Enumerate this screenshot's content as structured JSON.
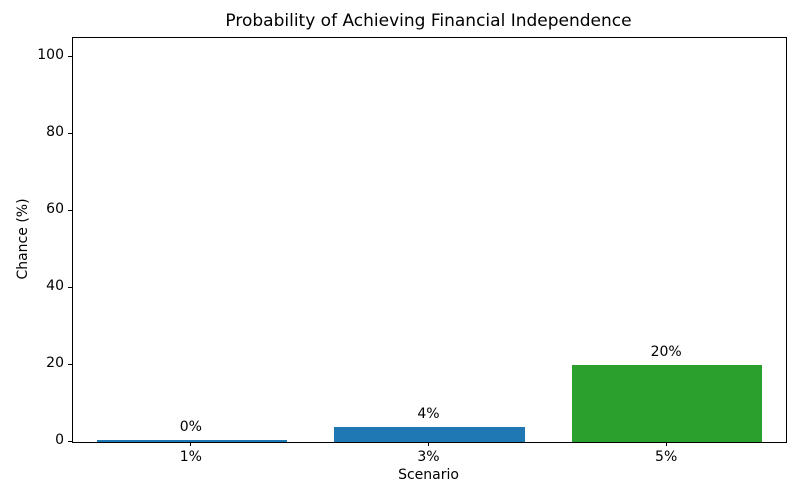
{
  "chart_data": {
    "type": "bar",
    "title": "Probability of Achieving Financial Independence",
    "xlabel": "Scenario",
    "ylabel": "Chance (%)",
    "categories": [
      "1%",
      "3%",
      "5%"
    ],
    "values": [
      0.5,
      4,
      20
    ],
    "value_labels": [
      "0%",
      "4%",
      "20%"
    ],
    "bar_colors": [
      "#1f77b4",
      "#1f77b4",
      "#2ca02c"
    ],
    "ylim": [
      0,
      105
    ],
    "yticks": [
      0,
      20,
      40,
      60,
      80,
      100
    ],
    "bar_width_fraction": 0.8,
    "grid": false,
    "legend_position": "none",
    "background_color": "#ffffff",
    "text_color": "#000000"
  }
}
